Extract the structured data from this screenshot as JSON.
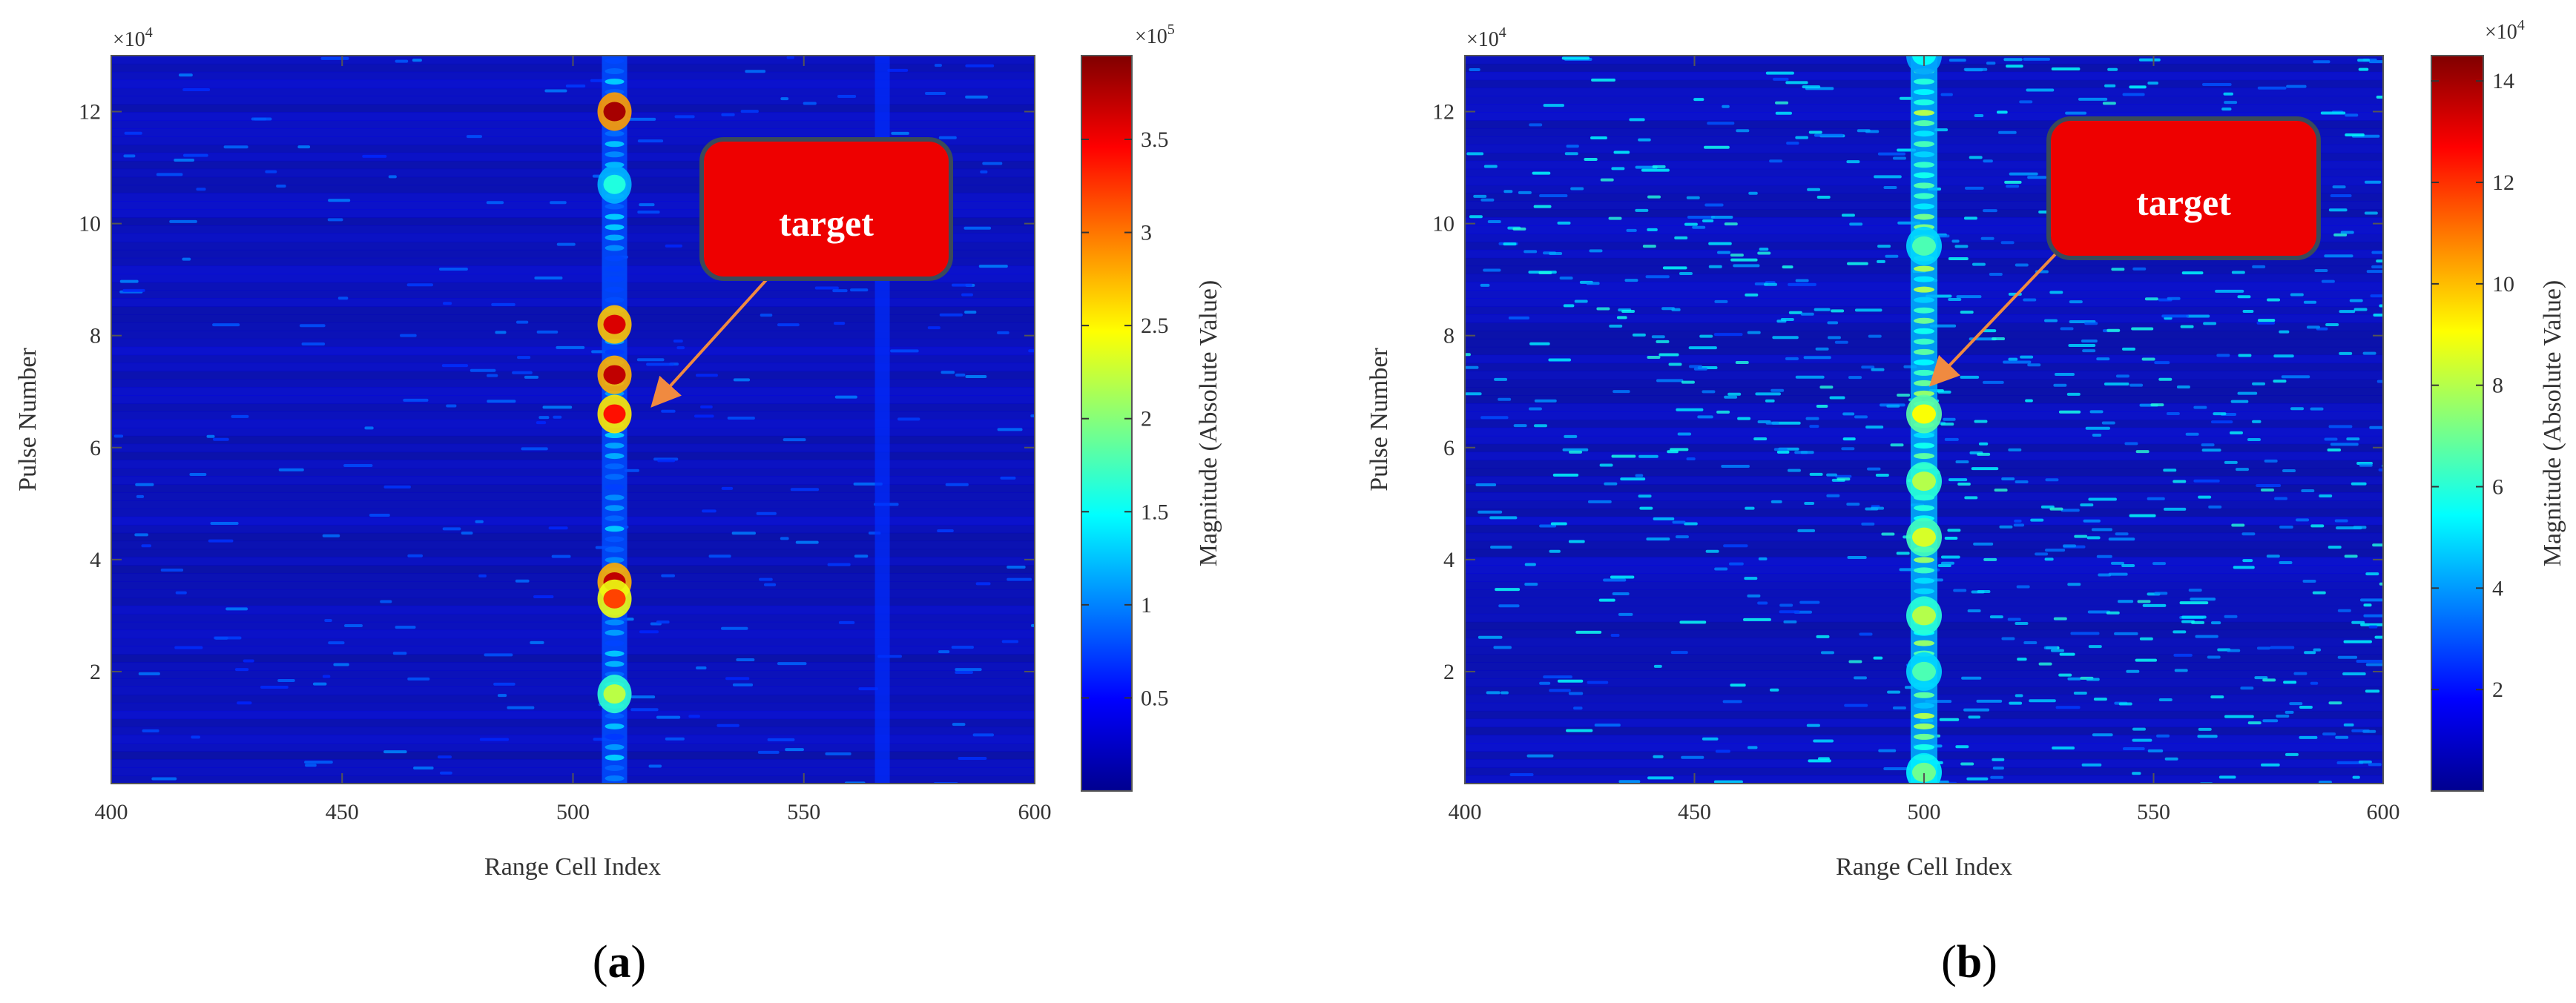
{
  "chart_data": [
    {
      "type": "heatmap",
      "panel_label": "a",
      "panel_label_open": "(",
      "panel_label_close": ")",
      "xlabel": "Range Cell Index",
      "ylabel": "Pulse Number",
      "xlim": [
        400,
        600
      ],
      "ylim": [
        0,
        13
      ],
      "y_multiplier": "×10",
      "y_multiplier_exp": "4",
      "x_ticks": [
        400,
        450,
        500,
        550,
        600
      ],
      "y_ticks": [
        2,
        4,
        6,
        8,
        10,
        12
      ],
      "colorbar": {
        "label": "Magnitude (Absolute Value)",
        "multiplier": "×10",
        "multiplier_exp": "5",
        "ticks": [
          0.5,
          1,
          1.5,
          2,
          2.5,
          3,
          3.5
        ],
        "tick_labels": [
          "0.5",
          "1",
          "1.5",
          "2",
          "2.5",
          "3",
          "3.5"
        ],
        "range": [
          0,
          3.95
        ],
        "colormap": "jet"
      },
      "annotation": {
        "text": "target",
        "box_color": "#ee0000",
        "arrow_color": "#f08a40",
        "points_to": [
          513,
          7.0
        ]
      },
      "features": {
        "target_column": 509,
        "strong_returns": [
          {
            "pulse": 12.0,
            "magnitude": 3.8
          },
          {
            "pulse": 10.7,
            "magnitude": 1.6
          },
          {
            "pulse": 8.2,
            "magnitude": 3.6
          },
          {
            "pulse": 7.3,
            "magnitude": 3.7
          },
          {
            "pulse": 6.6,
            "magnitude": 3.4
          },
          {
            "pulse": 3.6,
            "magnitude": 3.7
          },
          {
            "pulse": 3.3,
            "magnitude": 3.2
          },
          {
            "pulse": 1.6,
            "magnitude": 2.2
          }
        ],
        "weak_column": 567
      }
    },
    {
      "type": "heatmap",
      "panel_label": "b",
      "panel_label_open": "(",
      "panel_label_close": ")",
      "xlabel": "Range Cell Index",
      "ylabel": "Pulse Number",
      "xlim": [
        400,
        600
      ],
      "ylim": [
        0,
        13
      ],
      "y_multiplier": "×10",
      "y_multiplier_exp": "4",
      "x_ticks": [
        400,
        450,
        500,
        550,
        600
      ],
      "y_ticks": [
        2,
        4,
        6,
        8,
        10,
        12
      ],
      "colorbar": {
        "label": "Magnitude (Absolute Value)",
        "multiplier": "×10",
        "multiplier_exp": "4",
        "ticks": [
          2,
          4,
          6,
          8,
          10,
          12,
          14
        ],
        "tick_labels": [
          "2",
          "4",
          "6",
          "8",
          "10",
          "12",
          "14"
        ],
        "range": [
          0,
          14.5
        ],
        "colormap": "jet"
      },
      "annotation": {
        "text": "target",
        "box_color": "#ee0000",
        "arrow_color": "#f08a40",
        "points_to": [
          502,
          7.3
        ]
      },
      "features": {
        "target_column": 500,
        "strong_returns": [
          {
            "pulse": 13.0,
            "magnitude": 5.5
          },
          {
            "pulse": 9.6,
            "magnitude": 6.5
          },
          {
            "pulse": 6.6,
            "magnitude": 9.0
          },
          {
            "pulse": 5.4,
            "magnitude": 8.0
          },
          {
            "pulse": 4.4,
            "magnitude": 8.5
          },
          {
            "pulse": 3.0,
            "magnitude": 8.0
          },
          {
            "pulse": 2.0,
            "magnitude": 6.5
          },
          {
            "pulse": 0.2,
            "magnitude": 7.0
          }
        ],
        "diagonal_streaks": true
      }
    }
  ]
}
